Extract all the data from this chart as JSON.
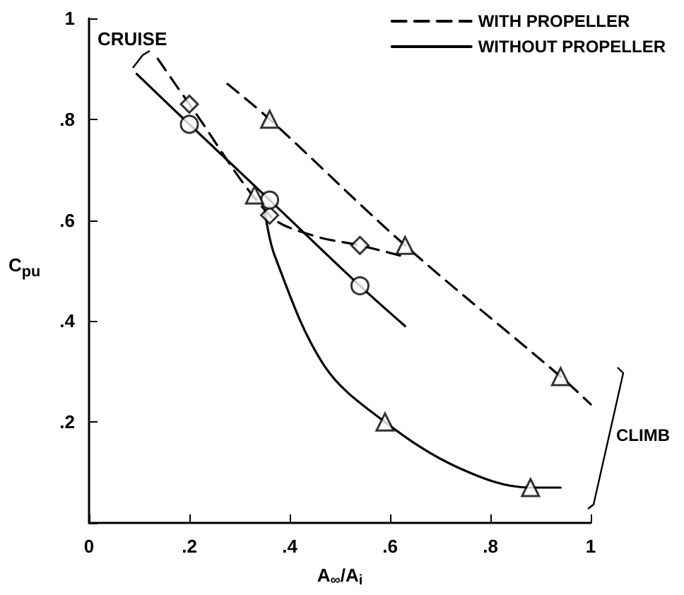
{
  "chart_data": {
    "type": "line",
    "xlabel": "A$_{∞}$/A$_{i}$",
    "ylabel": "C$_{pu}$",
    "xlim": [
      0,
      1
    ],
    "ylim": [
      0,
      1
    ],
    "xticks": [
      0,
      {
        "value": 0.2,
        "label": ".2"
      },
      {
        "value": 0.4,
        "label": ".4"
      },
      {
        "value": 0.6,
        "label": ".6"
      },
      {
        "value": 0.8,
        "label": ".8"
      },
      1
    ],
    "yticks": [
      {
        "value": 0,
        "label": null
      },
      {
        "value": 0.2,
        "label": ".2"
      },
      {
        "value": 0.4,
        "label": ".4"
      },
      {
        "value": 0.6,
        "label": ".6"
      },
      {
        "value": 0.8,
        "label": ".8"
      },
      1
    ],
    "grid": false,
    "legend": "top right",
    "series": [
      {
        "name": "WITH PROPELLER",
        "line_style": "dashed",
        "marker": "none",
        "color": "#000000",
        "x": [
          0.137,
          0.2,
          0.36,
          0.445,
          0.54,
          0.62
        ],
        "values": [
          0.92,
          0.83,
          0.61,
          0.57,
          0.55,
          0.53
        ]
      },
      {
        "line_style": "dashed",
        "marker": "none",
        "color": "#000000",
        "x": [
          0.276,
          0.36,
          0.63,
          0.94,
          1.0
        ],
        "values": [
          0.87,
          0.8,
          0.55,
          0.29,
          0.235
        ]
      },
      {
        "name": "WITHOUT PROPELLER",
        "line_style": "solid",
        "marker": "none",
        "color": "#000000",
        "x": [
          0.095,
          0.2,
          0.36,
          0.54,
          0.63
        ],
        "values": [
          0.89,
          0.79,
          0.64,
          0.47,
          0.39
        ]
      },
      {
        "line_style": "solid",
        "marker": "none",
        "color": "#000000",
        "x": [
          0.35,
          0.37,
          0.47,
          0.59,
          0.735,
          0.88,
          0.94
        ],
        "values": [
          0.62,
          0.53,
          0.31,
          0.2,
          0.11,
          0.07,
          0.07
        ]
      },
      {
        "type": "scatter",
        "marker": "diamond",
        "color": "#000000",
        "x": [
          0.2,
          0.36,
          0.54
        ],
        "values": [
          0.83,
          0.61,
          0.55
        ]
      },
      {
        "type": "scatter",
        "marker": "triangle",
        "color": "#000000",
        "x": [
          0.36,
          0.63,
          0.94
        ],
        "values": [
          0.8,
          0.55,
          0.29
        ]
      },
      {
        "type": "scatter",
        "marker": "circle",
        "color": "#000000",
        "x": [
          0.2,
          0.36,
          0.54
        ],
        "values": [
          0.79,
          0.64,
          0.47
        ]
      },
      {
        "type": "scatter",
        "marker": "triangle",
        "color": "#000000",
        "x": [
          0.33,
          0.59,
          0.88
        ],
        "values": [
          0.65,
          0.2,
          0.07
        ]
      }
    ],
    "annotations": [
      "CRUISE",
      "CLIMB"
    ]
  }
}
